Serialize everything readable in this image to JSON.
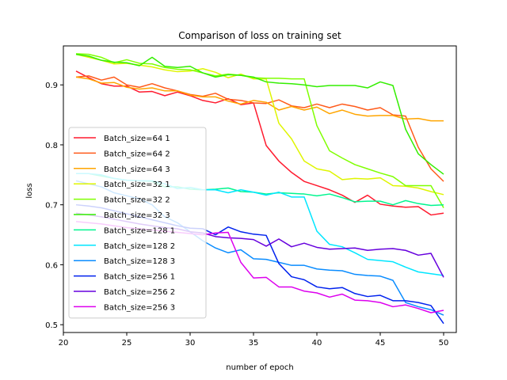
{
  "chart_data": {
    "type": "line",
    "title": "Comparison of loss on training set",
    "xlabel": "number of epoch",
    "ylabel": "loss",
    "xlim": [
      20,
      51
    ],
    "ylim": [
      0.487,
      0.965
    ],
    "xticks": [
      20,
      25,
      30,
      35,
      40,
      45,
      50
    ],
    "yticks": [
      0.5,
      0.6,
      0.7,
      0.8,
      0.9
    ],
    "grid": false,
    "legend_position": "center-left",
    "x": [
      21,
      22,
      23,
      24,
      25,
      26,
      27,
      28,
      29,
      30,
      31,
      32,
      33,
      34,
      35,
      36,
      37,
      38,
      39,
      40,
      41,
      42,
      43,
      44,
      45,
      46,
      47,
      48,
      49,
      50
    ],
    "series": [
      {
        "name": "Batch_size=64 1",
        "color": "#ff1a2e",
        "values": [
          0.923,
          0.912,
          0.902,
          0.898,
          0.898,
          0.888,
          0.889,
          0.882,
          0.888,
          0.882,
          0.874,
          0.87,
          0.877,
          0.867,
          0.87,
          0.799,
          0.773,
          0.754,
          0.739,
          0.732,
          0.725,
          0.716,
          0.704,
          0.716,
          0.701,
          0.698,
          0.696,
          0.697,
          0.683,
          0.686
        ]
      },
      {
        "name": "Batch_size=64 2",
        "color": "#ff5a1a",
        "values": [
          0.913,
          0.915,
          0.908,
          0.913,
          0.9,
          0.896,
          0.902,
          0.895,
          0.89,
          0.884,
          0.881,
          0.886,
          0.876,
          0.874,
          0.87,
          0.869,
          0.875,
          0.865,
          0.862,
          0.868,
          0.862,
          0.868,
          0.864,
          0.858,
          0.862,
          0.85,
          0.848,
          0.796,
          0.76,
          0.739
        ]
      },
      {
        "name": "Batch_size=64 3",
        "color": "#ffa500",
        "values": [
          0.913,
          0.91,
          0.903,
          0.904,
          0.896,
          0.893,
          0.895,
          0.89,
          0.89,
          0.883,
          0.88,
          0.88,
          0.873,
          0.868,
          0.874,
          0.871,
          0.858,
          0.864,
          0.858,
          0.863,
          0.852,
          0.858,
          0.851,
          0.848,
          0.849,
          0.849,
          0.843,
          0.844,
          0.84,
          0.84
        ]
      },
      {
        "name": "Batch_size=32 1",
        "color": "#dff500",
        "values": [
          0.951,
          0.946,
          0.941,
          0.935,
          0.936,
          0.933,
          0.93,
          0.925,
          0.922,
          0.923,
          0.927,
          0.921,
          0.912,
          0.918,
          0.91,
          0.91,
          0.836,
          0.81,
          0.773,
          0.76,
          0.756,
          0.742,
          0.744,
          0.743,
          0.745,
          0.732,
          0.731,
          0.728,
          0.722,
          0.717
        ]
      },
      {
        "name": "Batch_size=32 2",
        "color": "#7fff00",
        "values": [
          0.952,
          0.951,
          0.946,
          0.937,
          0.942,
          0.936,
          0.935,
          0.929,
          0.926,
          0.925,
          0.92,
          0.915,
          0.918,
          0.916,
          0.912,
          0.911,
          0.911,
          0.91,
          0.91,
          0.832,
          0.79,
          0.778,
          0.767,
          0.76,
          0.753,
          0.747,
          0.732,
          0.732,
          0.732,
          0.695
        ]
      },
      {
        "name": "Batch_size=32 3",
        "color": "#33ee00",
        "values": [
          0.951,
          0.948,
          0.941,
          0.938,
          0.937,
          0.932,
          0.946,
          0.931,
          0.929,
          0.931,
          0.92,
          0.913,
          0.917,
          0.916,
          0.913,
          0.905,
          0.903,
          0.902,
          0.9,
          0.897,
          0.899,
          0.899,
          0.899,
          0.895,
          0.905,
          0.899,
          0.826,
          0.785,
          0.767,
          0.751
        ]
      },
      {
        "name": "Batch_size=128 1",
        "color": "#00f58f",
        "values": [
          0.752,
          0.752,
          0.748,
          0.744,
          0.741,
          0.74,
          0.739,
          0.73,
          0.73,
          0.726,
          0.725,
          0.726,
          0.728,
          0.722,
          0.721,
          0.718,
          0.72,
          0.719,
          0.718,
          0.715,
          0.718,
          0.712,
          0.705,
          0.706,
          0.706,
          0.7,
          0.707,
          0.702,
          0.699,
          0.7
        ]
      },
      {
        "name": "Batch_size=128 2",
        "color": "#00e6ff",
        "values": [
          0.752,
          0.752,
          0.75,
          0.744,
          0.741,
          0.74,
          0.74,
          0.735,
          0.727,
          0.729,
          0.725,
          0.725,
          0.72,
          0.725,
          0.721,
          0.716,
          0.721,
          0.713,
          0.713,
          0.656,
          0.634,
          0.63,
          0.62,
          0.609,
          0.607,
          0.605,
          0.596,
          0.588,
          0.585,
          0.582
        ]
      },
      {
        "name": "Batch_size=128 3",
        "color": "#0a8cff",
        "values": [
          0.74,
          0.735,
          0.73,
          0.72,
          0.715,
          0.71,
          0.7,
          0.68,
          0.67,
          0.655,
          0.64,
          0.628,
          0.62,
          0.625,
          0.61,
          0.609,
          0.604,
          0.599,
          0.599,
          0.593,
          0.591,
          0.59,
          0.584,
          0.582,
          0.581,
          0.574,
          0.537,
          0.53,
          0.525,
          0.516
        ]
      },
      {
        "name": "Batch_size=256 1",
        "color": "#0022ee",
        "values": [
          0.7,
          0.698,
          0.695,
          0.69,
          0.685,
          0.68,
          0.675,
          0.67,
          0.665,
          0.661,
          0.66,
          0.65,
          0.663,
          0.655,
          0.651,
          0.649,
          0.602,
          0.58,
          0.575,
          0.563,
          0.56,
          0.562,
          0.552,
          0.547,
          0.549,
          0.54,
          0.54,
          0.537,
          0.532,
          0.502
        ]
      },
      {
        "name": "Batch_size=256 2",
        "color": "#6600dd",
        "values": [
          0.686,
          0.683,
          0.68,
          0.676,
          0.672,
          0.668,
          0.665,
          0.662,
          0.66,
          0.655,
          0.653,
          0.647,
          0.645,
          0.644,
          0.642,
          0.631,
          0.643,
          0.63,
          0.636,
          0.629,
          0.626,
          0.627,
          0.628,
          0.624,
          0.626,
          0.627,
          0.624,
          0.616,
          0.619,
          0.579
        ]
      },
      {
        "name": "Batch_size=256 3",
        "color": "#dd00ee",
        "values": [
          0.672,
          0.67,
          0.668,
          0.665,
          0.662,
          0.66,
          0.658,
          0.656,
          0.654,
          0.652,
          0.65,
          0.653,
          0.654,
          0.604,
          0.578,
          0.579,
          0.563,
          0.563,
          0.556,
          0.553,
          0.546,
          0.551,
          0.541,
          0.54,
          0.537,
          0.53,
          0.533,
          0.527,
          0.52,
          0.524
        ]
      }
    ]
  }
}
